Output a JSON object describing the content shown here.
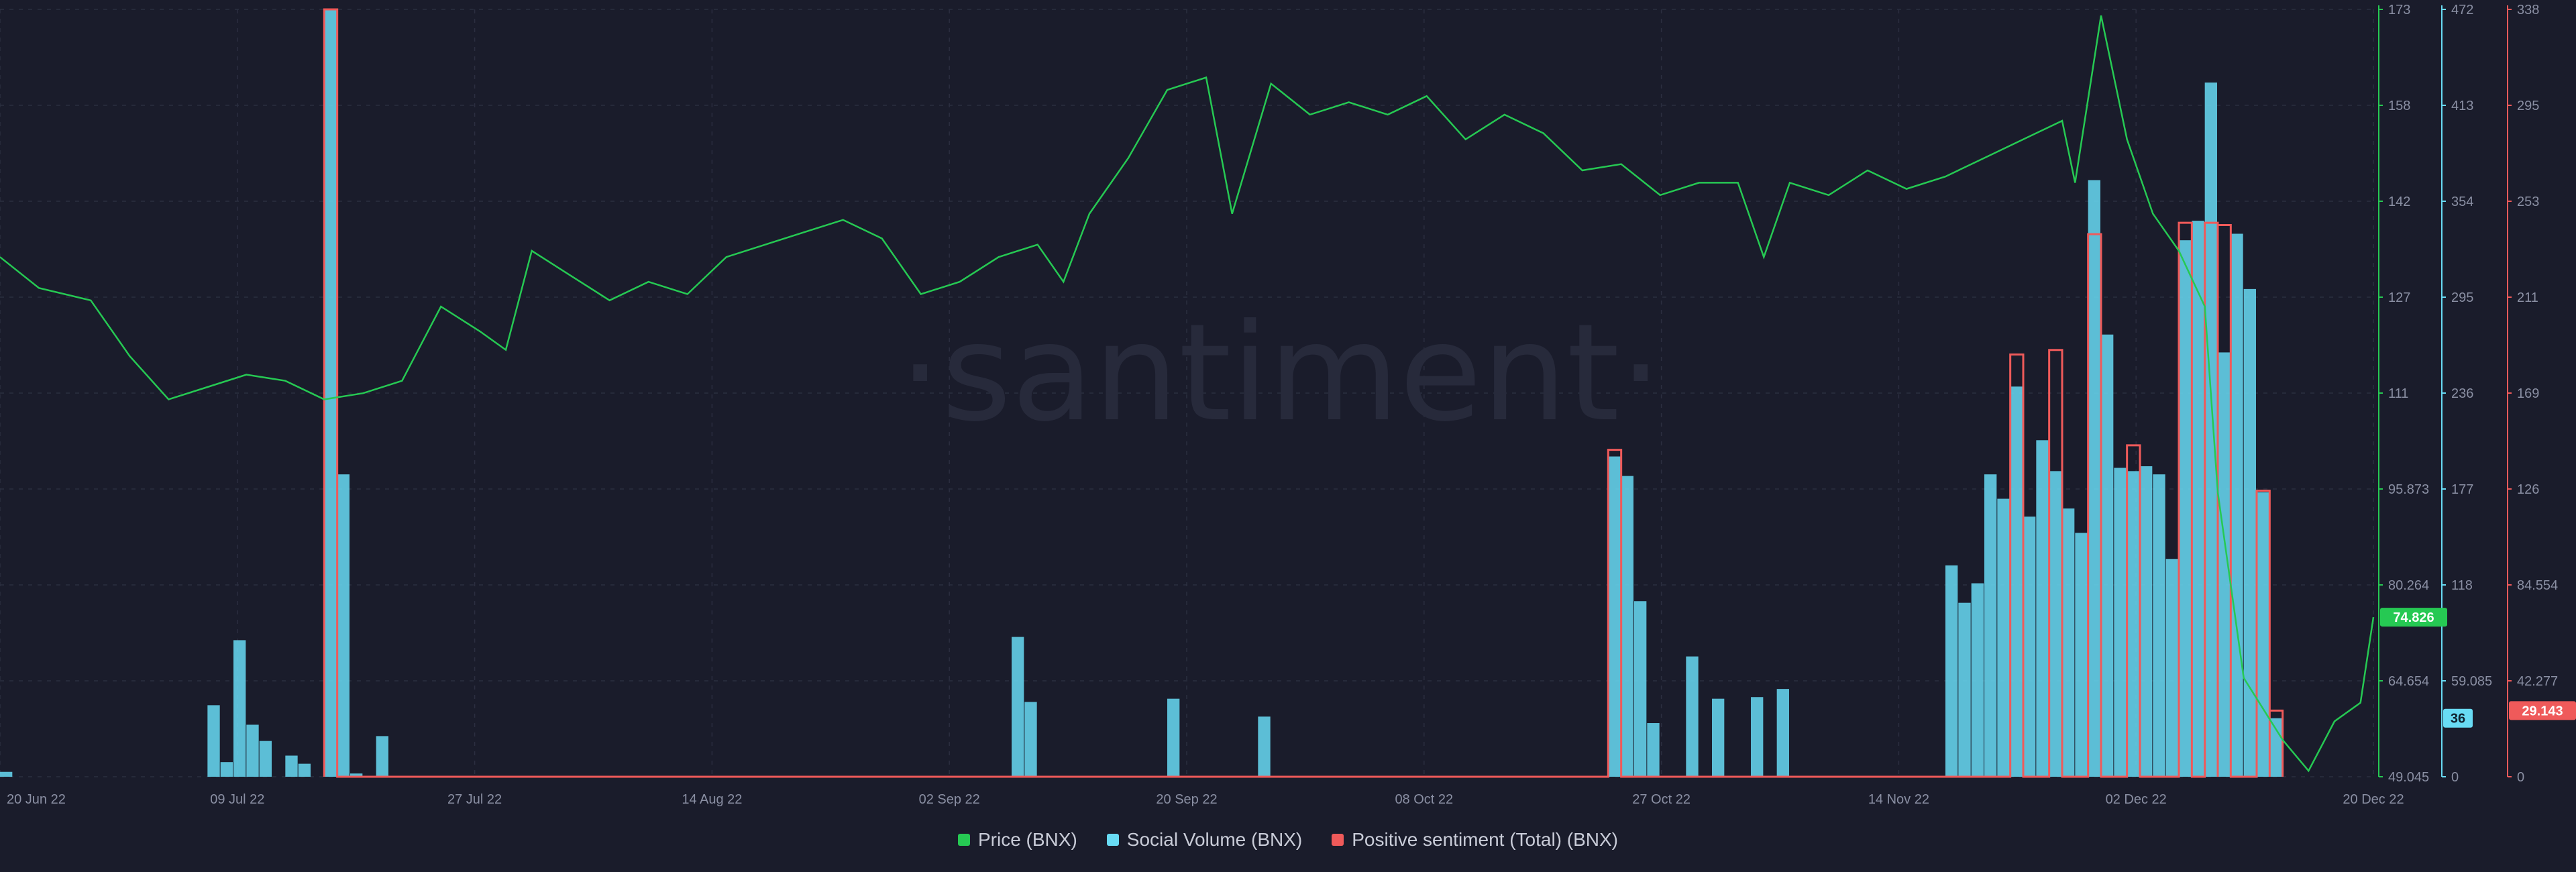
{
  "watermark": "·santiment·",
  "colors": {
    "price": "#26c953",
    "social_volume": "#68dbf4",
    "positive_sentiment": "#ef5a5a",
    "background": "#1a1c2b",
    "grid": "#2b2e40"
  },
  "legend": [
    {
      "label": "Price (BNX)",
      "color": "#26c953"
    },
    {
      "label": "Social Volume (BNX)",
      "color": "#68dbf4"
    },
    {
      "label": "Positive sentiment (Total) (BNX)",
      "color": "#ef5a5a"
    }
  ],
  "chart_data": {
    "type": "line",
    "x_range": [
      "2022-06-20",
      "2022-12-20"
    ],
    "x_ticks": [
      "20 Jun 22",
      "09 Jul 22",
      "27 Jul 22",
      "14 Aug 22",
      "02 Sep 22",
      "20 Sep 22",
      "08 Oct 22",
      "27 Oct 22",
      "14 Nov 22",
      "02 Dec 22",
      "20 Dec 22"
    ],
    "axes": {
      "price": {
        "min": 49.045,
        "max": 173,
        "ticks": [
          "173",
          "158",
          "142",
          "127",
          "111",
          "95.873",
          "80.264",
          "64.654",
          "49.045"
        ],
        "current": "74.826"
      },
      "social_volume": {
        "min": 0,
        "max": 472,
        "ticks": [
          "472",
          "413",
          "354",
          "295",
          "236",
          "177",
          "118",
          "59.085",
          "0"
        ],
        "current": "36"
      },
      "positive_sentiment": {
        "min": 0,
        "max": 338,
        "ticks": [
          "338",
          "295",
          "253",
          "211",
          "169",
          "126",
          "84.554",
          "42.277",
          "0"
        ],
        "current": "29.143"
      }
    },
    "series": [
      {
        "name": "Price (BNX)",
        "chart": "line",
        "axis": "price",
        "points": [
          [
            "2022-06-20",
            133
          ],
          [
            "2022-06-23",
            128
          ],
          [
            "2022-06-27",
            126
          ],
          [
            "2022-06-30",
            117
          ],
          [
            "2022-07-03",
            110
          ],
          [
            "2022-07-06",
            112
          ],
          [
            "2022-07-09",
            114
          ],
          [
            "2022-07-12",
            113
          ],
          [
            "2022-07-15",
            110
          ],
          [
            "2022-07-18",
            111
          ],
          [
            "2022-07-21",
            113
          ],
          [
            "2022-07-24",
            125
          ],
          [
            "2022-07-27",
            121
          ],
          [
            "2022-07-29",
            118
          ],
          [
            "2022-07-31",
            134
          ],
          [
            "2022-08-03",
            130
          ],
          [
            "2022-08-06",
            126
          ],
          [
            "2022-08-09",
            129
          ],
          [
            "2022-08-12",
            127
          ],
          [
            "2022-08-15",
            133
          ],
          [
            "2022-08-18",
            135
          ],
          [
            "2022-08-21",
            137
          ],
          [
            "2022-08-24",
            139
          ],
          [
            "2022-08-27",
            136
          ],
          [
            "2022-08-30",
            127
          ],
          [
            "2022-09-02",
            129
          ],
          [
            "2022-09-05",
            133
          ],
          [
            "2022-09-08",
            135
          ],
          [
            "2022-09-10",
            129
          ],
          [
            "2022-09-12",
            140
          ],
          [
            "2022-09-15",
            149
          ],
          [
            "2022-09-18",
            160
          ],
          [
            "2022-09-21",
            162
          ],
          [
            "2022-09-23",
            140
          ],
          [
            "2022-09-26",
            161
          ],
          [
            "2022-09-29",
            156
          ],
          [
            "2022-10-02",
            158
          ],
          [
            "2022-10-05",
            156
          ],
          [
            "2022-10-08",
            159
          ],
          [
            "2022-10-11",
            152
          ],
          [
            "2022-10-14",
            156
          ],
          [
            "2022-10-17",
            153
          ],
          [
            "2022-10-20",
            147
          ],
          [
            "2022-10-23",
            148
          ],
          [
            "2022-10-26",
            143
          ],
          [
            "2022-10-29",
            145
          ],
          [
            "2022-11-01",
            145
          ],
          [
            "2022-11-03",
            133
          ],
          [
            "2022-11-05",
            145
          ],
          [
            "2022-11-08",
            143
          ],
          [
            "2022-11-11",
            147
          ],
          [
            "2022-11-14",
            144
          ],
          [
            "2022-11-17",
            146
          ],
          [
            "2022-11-20",
            149
          ],
          [
            "2022-11-23",
            152
          ],
          [
            "2022-11-26",
            155
          ],
          [
            "2022-11-27",
            145
          ],
          [
            "2022-11-29",
            172
          ],
          [
            "2022-12-01",
            152
          ],
          [
            "2022-12-03",
            140
          ],
          [
            "2022-12-05",
            134
          ],
          [
            "2022-12-07",
            125
          ],
          [
            "2022-12-08",
            95
          ],
          [
            "2022-12-10",
            65
          ],
          [
            "2022-12-13",
            55
          ],
          [
            "2022-12-15",
            50
          ],
          [
            "2022-12-17",
            58
          ],
          [
            "2022-12-19",
            61
          ],
          [
            "2022-12-20",
            74.826
          ]
        ]
      },
      {
        "name": "Social Volume (BNX)",
        "chart": "bar",
        "axis": "social_volume",
        "bins": [
          [
            "2022-06-20",
            3
          ],
          [
            "2022-07-06",
            44
          ],
          [
            "2022-07-07",
            9
          ],
          [
            "2022-07-08",
            84
          ],
          [
            "2022-07-09",
            32
          ],
          [
            "2022-07-10",
            22
          ],
          [
            "2022-07-12",
            13
          ],
          [
            "2022-07-13",
            8
          ],
          [
            "2022-07-15",
            472
          ],
          [
            "2022-07-16",
            186
          ],
          [
            "2022-07-17",
            2
          ],
          [
            "2022-07-19",
            25
          ],
          [
            "2022-09-06",
            86
          ],
          [
            "2022-09-07",
            46
          ],
          [
            "2022-09-18",
            48
          ],
          [
            "2022-09-25",
            37
          ],
          [
            "2022-10-22",
            197
          ],
          [
            "2022-10-23",
            185
          ],
          [
            "2022-10-24",
            108
          ],
          [
            "2022-10-25",
            33
          ],
          [
            "2022-10-28",
            74
          ],
          [
            "2022-10-30",
            48
          ],
          [
            "2022-11-02",
            49
          ],
          [
            "2022-11-04",
            54
          ],
          [
            "2022-11-17",
            130
          ],
          [
            "2022-11-18",
            107
          ],
          [
            "2022-11-19",
            119
          ],
          [
            "2022-11-20",
            186
          ],
          [
            "2022-11-21",
            171
          ],
          [
            "2022-11-22",
            240
          ],
          [
            "2022-11-23",
            160
          ],
          [
            "2022-11-24",
            207
          ],
          [
            "2022-11-25",
            188
          ],
          [
            "2022-11-26",
            165
          ],
          [
            "2022-11-27",
            150
          ],
          [
            "2022-11-28",
            367
          ],
          [
            "2022-11-29",
            272
          ],
          [
            "2022-11-30",
            190
          ],
          [
            "2022-12-01",
            188
          ],
          [
            "2022-12-02",
            191
          ],
          [
            "2022-12-03",
            186
          ],
          [
            "2022-12-04",
            134
          ],
          [
            "2022-12-05",
            330
          ],
          [
            "2022-12-06",
            342
          ],
          [
            "2022-12-07",
            427
          ],
          [
            "2022-12-08",
            261
          ],
          [
            "2022-12-09",
            334
          ],
          [
            "2022-12-10",
            300
          ],
          [
            "2022-12-11",
            175
          ],
          [
            "2022-12-12",
            36
          ]
        ]
      },
      {
        "name": "Positive sentiment (Total) (BNX)",
        "chart": "step",
        "axis": "positive_sentiment",
        "bins": [
          [
            "2022-07-15",
            338
          ],
          [
            "2022-10-22",
            144
          ],
          [
            "2022-11-22",
            186
          ],
          [
            "2022-11-25",
            188
          ],
          [
            "2022-11-28",
            239
          ],
          [
            "2022-12-01",
            146
          ],
          [
            "2022-12-05",
            244
          ],
          [
            "2022-12-07",
            244
          ],
          [
            "2022-12-08",
            243
          ],
          [
            "2022-12-11",
            126
          ],
          [
            "2022-12-12",
            29.143
          ]
        ]
      }
    ]
  }
}
